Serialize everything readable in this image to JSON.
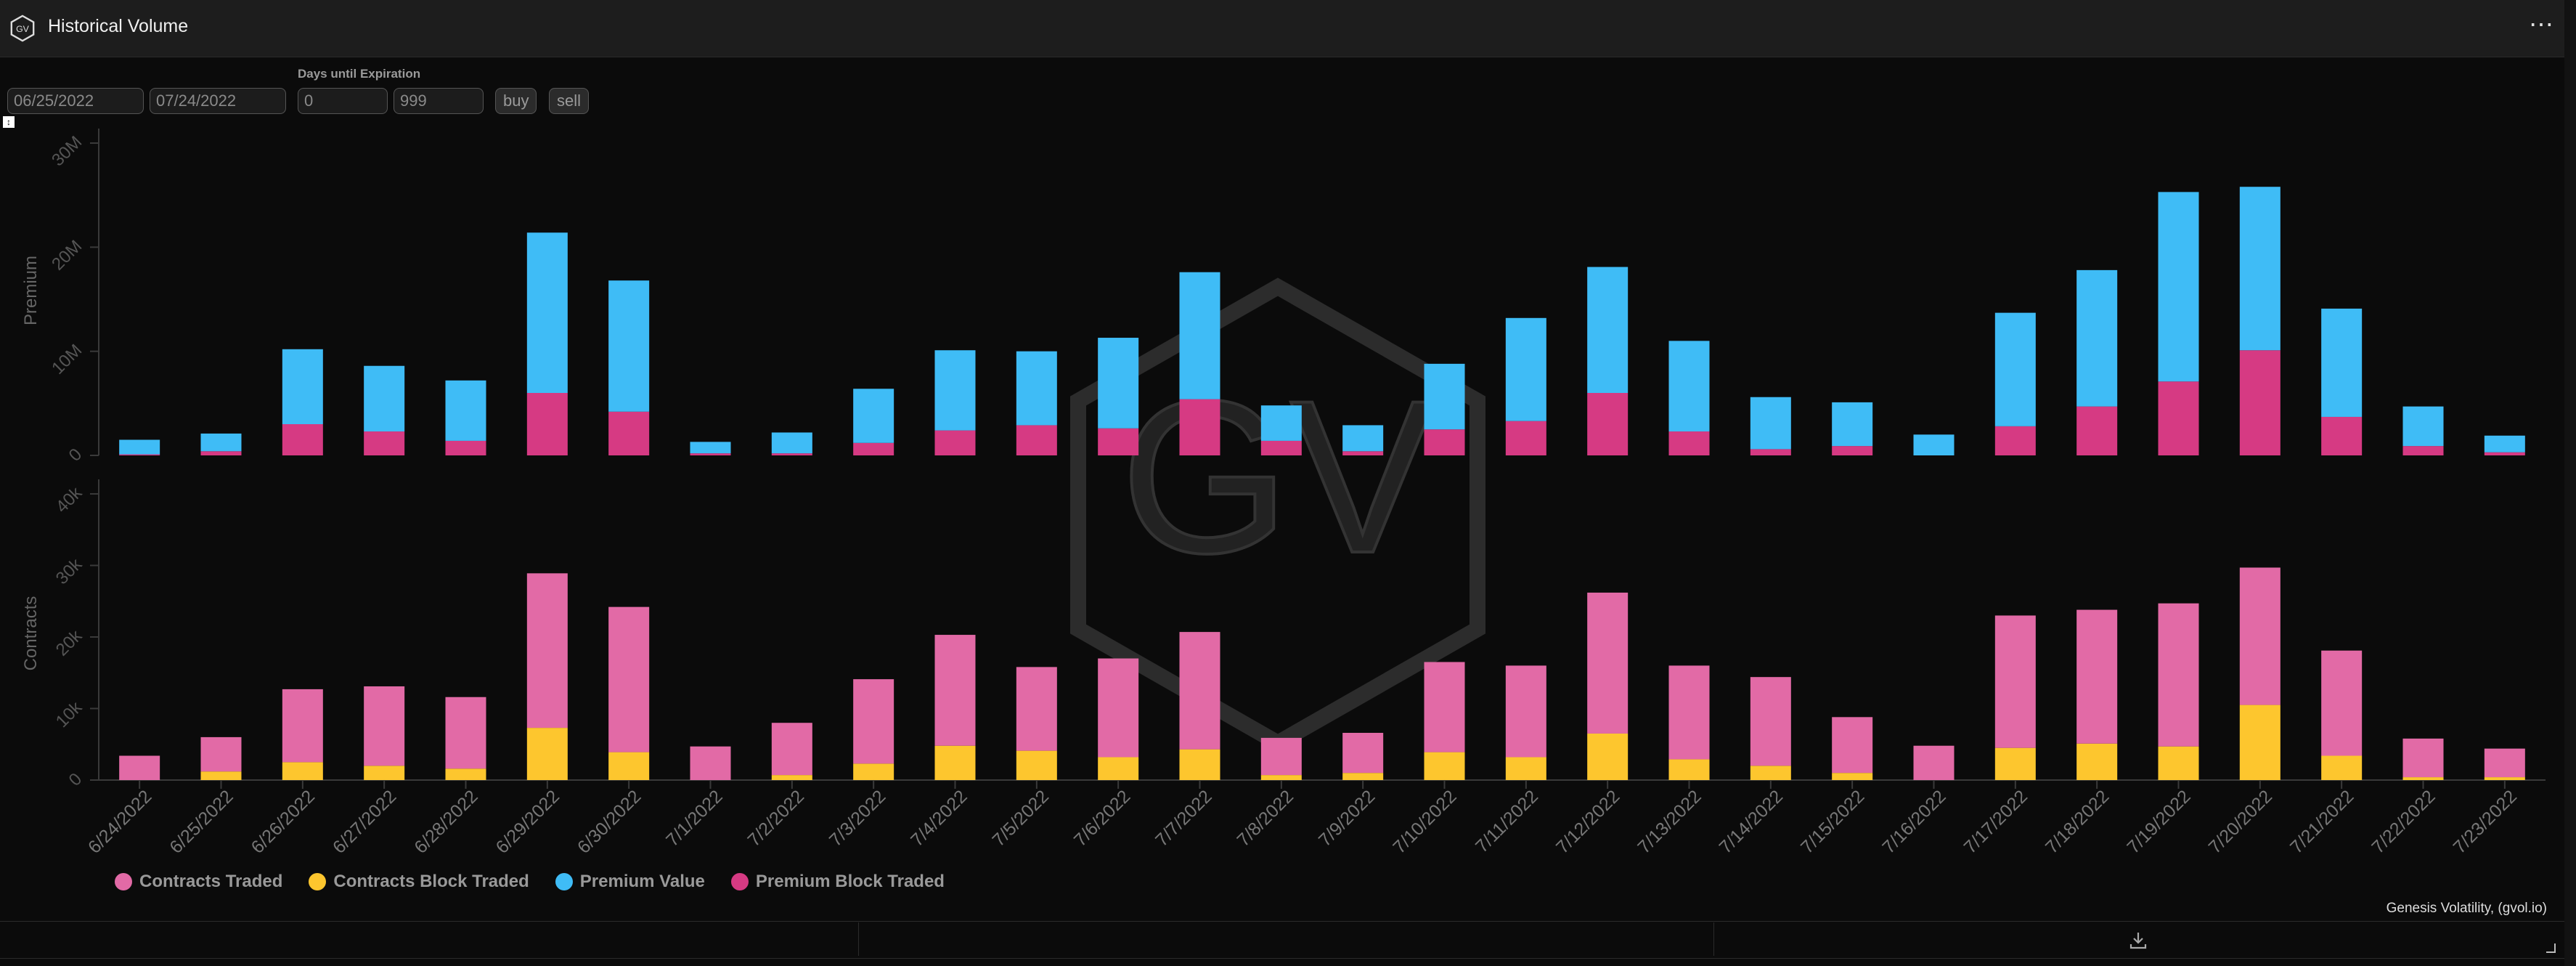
{
  "header": {
    "title": "Historical Volume",
    "logo_text": "GV",
    "menu_label": "⋯"
  },
  "controls": {
    "start_date": "06/25/2022",
    "end_date": "07/24/2022",
    "dte_label": "Days until Expiration",
    "dte_min": "0",
    "dte_max": "999",
    "buy_label": "buy",
    "sell_label": "sell"
  },
  "watermark": {
    "text": "GV"
  },
  "footer": {
    "source": "Genesis Volatility, (gvol.io)"
  },
  "colors": {
    "premium_value": "#3fbcf6",
    "premium_block": "#d63a83",
    "contracts_traded": "#e26aa6",
    "contracts_block": "#fdc62e"
  },
  "icons": {
    "logo": "gv-hexagon-logo",
    "menu": "more-horizontal-icon",
    "download": "download-icon"
  },
  "chart_data": [
    {
      "type": "bar",
      "stacked": true,
      "ylabel": "Premium",
      "ylim": [
        0,
        30000000
      ],
      "yticks": [
        "0",
        "10M",
        "20M",
        "30M"
      ],
      "categories": [
        "6/24/2022",
        "6/25/2022",
        "6/26/2022",
        "6/27/2022",
        "6/28/2022",
        "6/29/2022",
        "6/30/2022",
        "7/1/2022",
        "7/2/2022",
        "7/3/2022",
        "7/4/2022",
        "7/5/2022",
        "7/6/2022",
        "7/7/2022",
        "7/8/2022",
        "7/9/2022",
        "7/10/2022",
        "7/11/2022",
        "7/12/2022",
        "7/13/2022",
        "7/14/2022",
        "7/15/2022",
        "7/16/2022",
        "7/17/2022",
        "7/18/2022",
        "7/19/2022",
        "7/20/2022",
        "7/21/2022",
        "7/22/2022",
        "7/23/2022"
      ],
      "series": [
        {
          "name": "Premium Block Traded",
          "values": [
            0.1,
            0.4,
            3.0,
            2.3,
            1.4,
            6.0,
            4.2,
            0.2,
            0.2,
            1.2,
            2.4,
            2.9,
            2.6,
            5.4,
            1.4,
            0.4,
            2.5,
            3.3,
            6.0,
            2.3,
            0.6,
            0.9,
            0,
            2.8,
            4.7,
            7.1,
            10.1,
            3.7,
            0.9,
            0.3
          ]
        },
        {
          "name": "Premium Value",
          "values": [
            1.4,
            1.7,
            7.2,
            6.3,
            5.8,
            15.4,
            12.6,
            1.1,
            2.0,
            5.2,
            7.7,
            7.1,
            8.7,
            12.2,
            3.4,
            2.5,
            6.3,
            9.9,
            12.1,
            8.7,
            5.0,
            4.2,
            2.0,
            10.9,
            13.1,
            18.2,
            15.7,
            10.4,
            3.8,
            1.6
          ]
        }
      ],
      "unit_multiplier": 1000000
    },
    {
      "type": "bar",
      "stacked": true,
      "ylabel": "Contracts",
      "ylim": [
        0,
        40000
      ],
      "yticks": [
        "0",
        "10k",
        "20k",
        "30k",
        "40k"
      ],
      "categories": [
        "6/24/2022",
        "6/25/2022",
        "6/26/2022",
        "6/27/2022",
        "6/28/2022",
        "6/29/2022",
        "6/30/2022",
        "7/1/2022",
        "7/2/2022",
        "7/3/2022",
        "7/4/2022",
        "7/5/2022",
        "7/6/2022",
        "7/7/2022",
        "7/8/2022",
        "7/9/2022",
        "7/10/2022",
        "7/11/2022",
        "7/12/2022",
        "7/13/2022",
        "7/14/2022",
        "7/15/2022",
        "7/16/2022",
        "7/17/2022",
        "7/18/2022",
        "7/19/2022",
        "7/20/2022",
        "7/21/2022",
        "7/22/2022",
        "7/23/2022"
      ],
      "series": [
        {
          "name": "Contracts Block Traded",
          "values": [
            0,
            1.2,
            2.5,
            2.0,
            1.6,
            7.3,
            3.9,
            0,
            0.7,
            2.3,
            4.8,
            4.1,
            3.2,
            4.3,
            0.7,
            1.0,
            3.9,
            3.2,
            6.5,
            2.9,
            2.0,
            1.0,
            0,
            4.5,
            5.1,
            4.7,
            10.5,
            3.4,
            0.4,
            0.4
          ]
        },
        {
          "name": "Contracts Traded",
          "values": [
            3.4,
            4.8,
            10.2,
            11.1,
            10.0,
            21.6,
            20.3,
            4.7,
            7.3,
            11.8,
            15.5,
            11.7,
            13.8,
            16.4,
            5.2,
            5.6,
            12.6,
            12.8,
            19.7,
            13.1,
            12.4,
            7.8,
            4.8,
            18.5,
            18.7,
            20.0,
            19.2,
            14.7,
            5.4,
            4.0
          ]
        }
      ],
      "unit_multiplier": 1000
    }
  ],
  "legend": [
    {
      "name": "Contracts Traded",
      "color": "#e26aa6"
    },
    {
      "name": "Contracts Block Traded",
      "color": "#fdc62e"
    },
    {
      "name": "Premium Value",
      "color": "#3fbcf6"
    },
    {
      "name": "Premium Block Traded",
      "color": "#d63a83"
    }
  ]
}
